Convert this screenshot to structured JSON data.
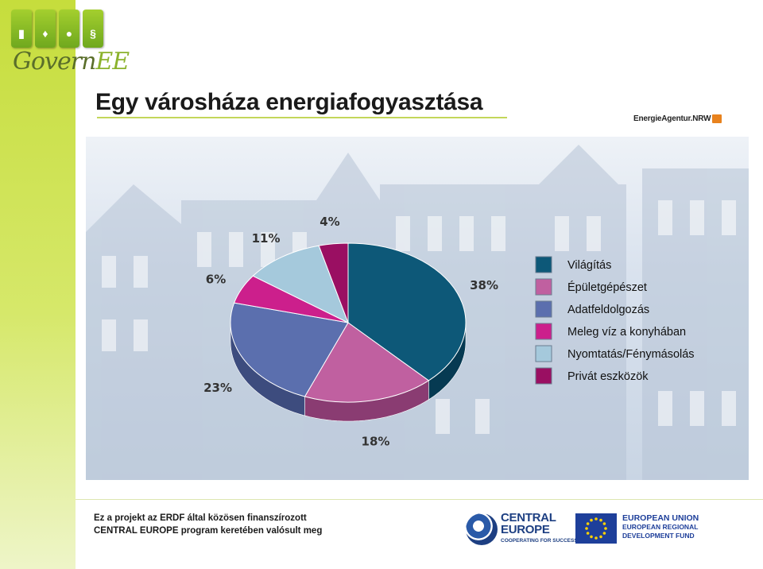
{
  "logo": {
    "word_main": "Govern",
    "word_accent": "EE",
    "box_symbols": [
      "▮",
      "♦",
      "●",
      "§"
    ]
  },
  "slide_title": "Egy városháza energiafogyasztása",
  "agentur": {
    "label": "EnergieAgentur.NRW"
  },
  "chart_data": {
    "type": "pie",
    "title": "",
    "categories": [
      "Világítás",
      "Épületgépészet",
      "Adatfeldolgozás",
      "Meleg víz a konyhában",
      "Nyomtatás/Fénymásolás",
      "Privát eszközök"
    ],
    "values": [
      38,
      18,
      23,
      6,
      11,
      4
    ],
    "labels": [
      "38%",
      "18%",
      "23%",
      "6%",
      "11%",
      "4%"
    ],
    "colors": [
      "#0d5878",
      "#c060a0",
      "#5b6fae",
      "#cc1f8c",
      "#a5c9dc",
      "#9a0f62"
    ],
    "side_colors": [
      "#063a52",
      "#8a3c72",
      "#3d4c7e",
      "#901563",
      "#7392a3",
      "#6a0a44"
    ],
    "style": "3d",
    "legend_position": "right"
  },
  "footer": {
    "line1": "Ez a projekt az ERDF által közösen finanszírozott",
    "line2": "CENTRAL EUROPE  program keretében valósult meg"
  },
  "ce_logo": {
    "line1": "CENTRAL",
    "line2": "EUROPE",
    "tagline": "COOPERATING FOR SUCCESS."
  },
  "eu_logo": {
    "line1": "EUROPEAN UNION",
    "line2": "EUROPEAN REGIONAL",
    "line3": "DEVELOPMENT FUND"
  }
}
